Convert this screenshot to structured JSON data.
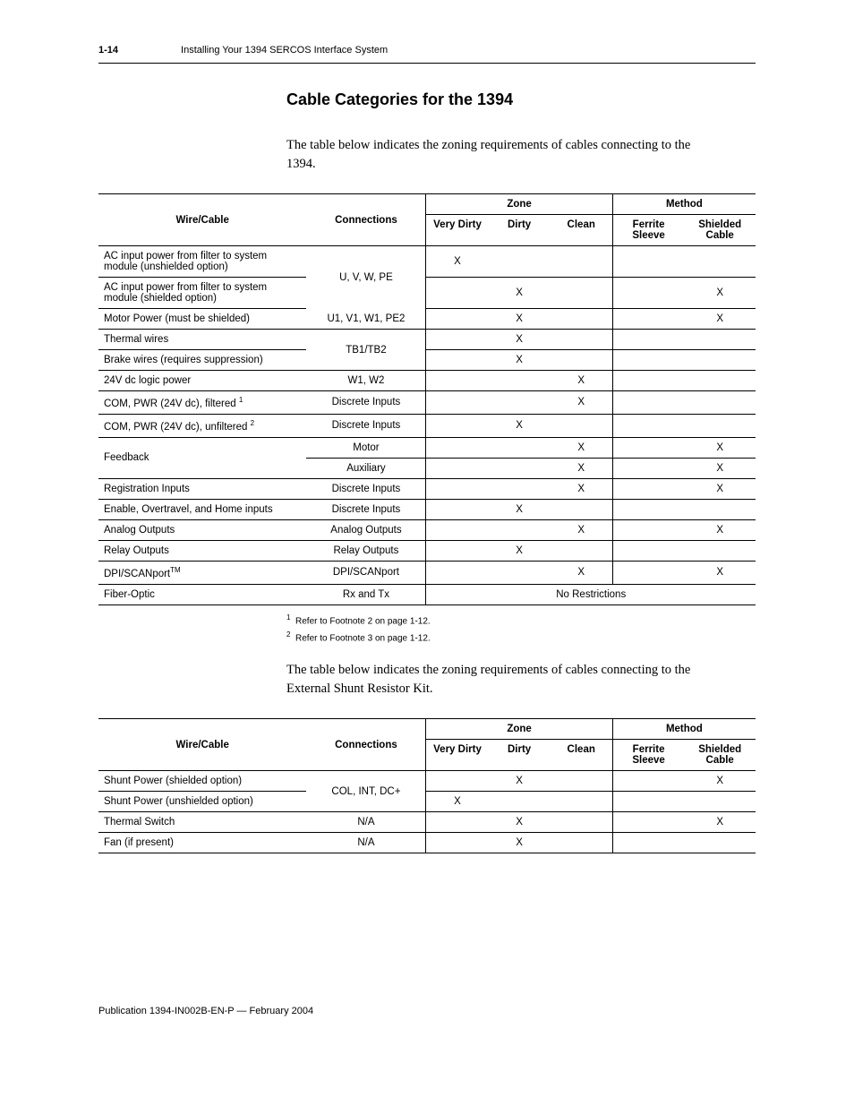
{
  "header": {
    "page_number": "1-14",
    "chapter_title": "Installing Your 1394 SERCOS Interface System"
  },
  "section": {
    "heading": "Cable Categories for the 1394",
    "intro1": "The table below indicates the zoning requirements of cables connecting to the 1394.",
    "intro2": "The table below indicates the zoning requirements of cables connecting to the External Shunt Resistor Kit."
  },
  "table_headers": {
    "wire_cable": "Wire/Cable",
    "connections": "Connections",
    "zone": "Zone",
    "method": "Method",
    "very_dirty": "Very Dirty",
    "dirty": "Dirty",
    "clean": "Clean",
    "ferrite_sleeve": "Ferrite Sleeve",
    "shielded_cable": "Shielded Cable"
  },
  "table1": {
    "rows": [
      {
        "wire": "AC input power from filter to system module (unshielded option)",
        "conn": "",
        "vd": "X",
        "d": "",
        "c": "",
        "fs": "",
        "sc": ""
      },
      {
        "wire": "AC input power from filter to system module (shielded option)",
        "conn": "U, V, W, PE",
        "vd": "",
        "d": "X",
        "c": "",
        "fs": "",
        "sc": "X"
      },
      {
        "wire": "Motor Power (must be shielded)",
        "conn": "U1, V1, W1, PE2",
        "vd": "",
        "d": "X",
        "c": "",
        "fs": "",
        "sc": "X"
      },
      {
        "wire": "Thermal wires",
        "conn": "",
        "vd": "",
        "d": "X",
        "c": "",
        "fs": "",
        "sc": ""
      },
      {
        "wire": "Brake wires (requires suppression)",
        "conn": "TB1/TB2",
        "vd": "",
        "d": "X",
        "c": "",
        "fs": "",
        "sc": ""
      },
      {
        "wire": "24V dc logic power",
        "conn": "W1, W2",
        "vd": "",
        "d": "",
        "c": "X",
        "fs": "",
        "sc": ""
      },
      {
        "wire": "COM, PWR (24V dc), filtered ",
        "sup": "1",
        "conn": "Discrete Inputs",
        "vd": "",
        "d": "",
        "c": "X",
        "fs": "",
        "sc": ""
      },
      {
        "wire": "COM, PWR (24V dc), unfiltered ",
        "sup": "2",
        "conn": "Discrete Inputs",
        "vd": "",
        "d": "X",
        "c": "",
        "fs": "",
        "sc": ""
      },
      {
        "wire": "Feedback",
        "conn": "Motor",
        "vd": "",
        "d": "",
        "c": "X",
        "fs": "",
        "sc": "X"
      },
      {
        "wire": "",
        "conn": "Auxiliary",
        "vd": "",
        "d": "",
        "c": "X",
        "fs": "",
        "sc": "X"
      },
      {
        "wire": "Registration Inputs",
        "conn": "Discrete Inputs",
        "vd": "",
        "d": "",
        "c": "X",
        "fs": "",
        "sc": "X"
      },
      {
        "wire": "Enable, Overtravel, and Home inputs",
        "conn": "Discrete Inputs",
        "vd": "",
        "d": "X",
        "c": "",
        "fs": "",
        "sc": ""
      },
      {
        "wire": "Analog Outputs",
        "conn": "Analog Outputs",
        "vd": "",
        "d": "",
        "c": "X",
        "fs": "",
        "sc": "X"
      },
      {
        "wire": "Relay Outputs",
        "conn": "Relay Outputs",
        "vd": "",
        "d": "X",
        "c": "",
        "fs": "",
        "sc": ""
      },
      {
        "wire": "DPI/SCANport",
        "tm": "TM",
        "conn": "DPI/SCANport",
        "vd": "",
        "d": "",
        "c": "X",
        "fs": "",
        "sc": "X"
      },
      {
        "wire": "Fiber-Optic",
        "conn": "Rx and Tx",
        "no_restrictions": "No Restrictions"
      }
    ]
  },
  "footnotes": {
    "f1": "Refer to Footnote 2 on page 1-12.",
    "f2": "Refer to Footnote 3 on page 1-12."
  },
  "table2": {
    "rows": [
      {
        "wire": "Shunt Power (shielded option)",
        "conn": "",
        "vd": "",
        "d": "X",
        "c": "",
        "fs": "",
        "sc": "X"
      },
      {
        "wire": "Shunt Power (unshielded option)",
        "conn": "COL, INT, DC+",
        "vd": "X",
        "d": "",
        "c": "",
        "fs": "",
        "sc": ""
      },
      {
        "wire": "Thermal Switch",
        "conn": "N/A",
        "vd": "",
        "d": "X",
        "c": "",
        "fs": "",
        "sc": "X"
      },
      {
        "wire": "Fan (if present)",
        "conn": "N/A",
        "vd": "",
        "d": "X",
        "c": "",
        "fs": "",
        "sc": ""
      }
    ]
  },
  "publication": "Publication 1394-IN002B-EN-P — February 2004"
}
